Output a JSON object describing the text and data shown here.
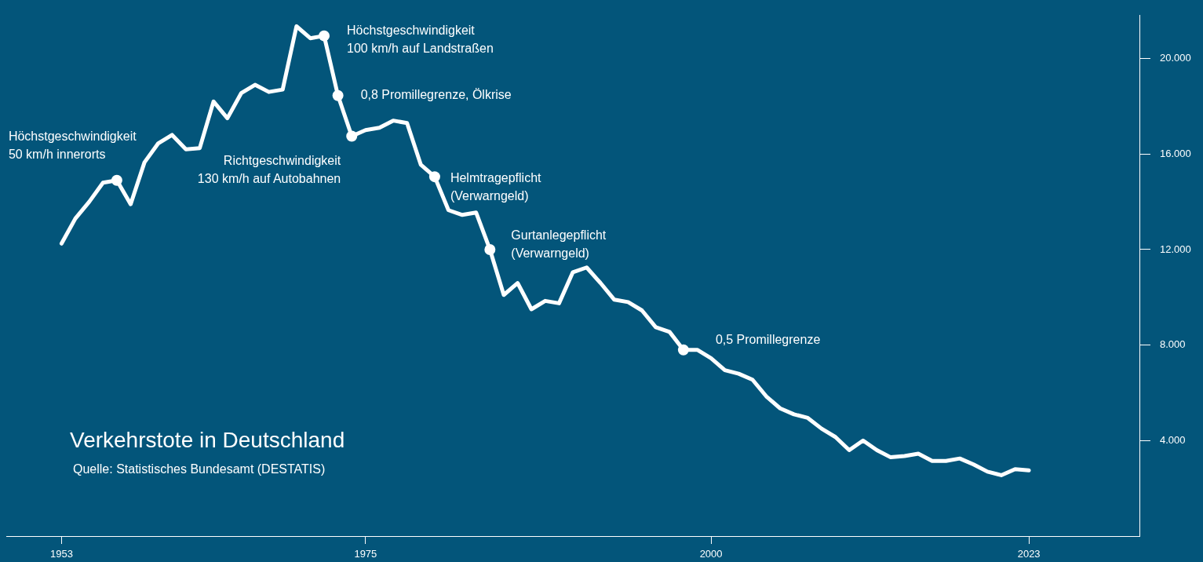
{
  "chart_data": {
    "type": "line",
    "title": "Verkehrstote in Deutschland",
    "subtitle": "Quelle: Statistisches Bundesamt (DESTATIS)",
    "x": [
      1953,
      1954,
      1955,
      1956,
      1957,
      1958,
      1959,
      1960,
      1961,
      1962,
      1963,
      1964,
      1965,
      1966,
      1967,
      1968,
      1969,
      1970,
      1971,
      1972,
      1973,
      1974,
      1975,
      1976,
      1977,
      1978,
      1979,
      1980,
      1981,
      1982,
      1983,
      1984,
      1985,
      1986,
      1987,
      1988,
      1989,
      1990,
      1991,
      1992,
      1993,
      1994,
      1995,
      1996,
      1997,
      1998,
      1999,
      2000,
      2001,
      2002,
      2003,
      2004,
      2005,
      2006,
      2007,
      2008,
      2009,
      2010,
      2011,
      2012,
      2013,
      2014,
      2015,
      2016,
      2017,
      2018,
      2019,
      2020,
      2021,
      2022,
      2023
    ],
    "series": [
      {
        "color": "#ffffff",
        "values": [
          12250,
          13300,
          14000,
          14800,
          14900,
          13900,
          15650,
          16450,
          16800,
          16200,
          16250,
          18200,
          17500,
          18550,
          18900,
          18600,
          18700,
          21350,
          20850,
          20950,
          18450,
          16750,
          17000,
          17100,
          17400,
          17300,
          15550,
          15050,
          13650,
          13450,
          13550,
          12000,
          10100,
          10600,
          9500,
          9850,
          9750,
          11050,
          11250,
          10600,
          9900,
          9800,
          9450,
          8750,
          8550,
          7800,
          7800,
          7450,
          6950,
          6800,
          6550,
          5850,
          5350,
          5100,
          4950,
          4500,
          4150,
          3600,
          4000,
          3600,
          3300,
          3350,
          3450,
          3150,
          3150,
          3250,
          3000,
          2700,
          2550,
          2800,
          2750
        ]
      }
    ],
    "xlim": [
      1949,
      2031
    ],
    "ylim": [
      0,
      21800
    ],
    "xticks": [
      1953,
      1975,
      2000,
      2023
    ],
    "yticks": [
      {
        "value": 4000,
        "label": "4.000"
      },
      {
        "value": 8000,
        "label": "8.000"
      },
      {
        "value": 12000,
        "label": "12.000"
      },
      {
        "value": 16000,
        "label": "16.000"
      },
      {
        "value": 20000,
        "label": "20.000"
      }
    ],
    "grid": false,
    "legend": false,
    "annotations": [
      {
        "text": "Höchstgeschwindigkeit\n50 km/h innerorts",
        "x": 1957,
        "y": 14900
      },
      {
        "text": "Höchstgeschwindigkeit\n100 km/h auf Landstraßen",
        "x": 1972,
        "y": 20950
      },
      {
        "text": "0,8 Promillegrenze, Ölkrise",
        "x": 1973,
        "y": 18450
      },
      {
        "text": "Richtgeschwindigkeit\n130 km/h auf Autobahnen",
        "x": 1974,
        "y": 16750
      },
      {
        "text": "Helmtragepflicht\n(Verwarngeld)",
        "x": 1980,
        "y": 15050
      },
      {
        "text": "Gurtanlegepflicht\n(Verwarngeld)",
        "x": 1984,
        "y": 12000
      },
      {
        "text": "0,5 Promillegrenze",
        "x": 1998,
        "y": 7800
      }
    ]
  }
}
